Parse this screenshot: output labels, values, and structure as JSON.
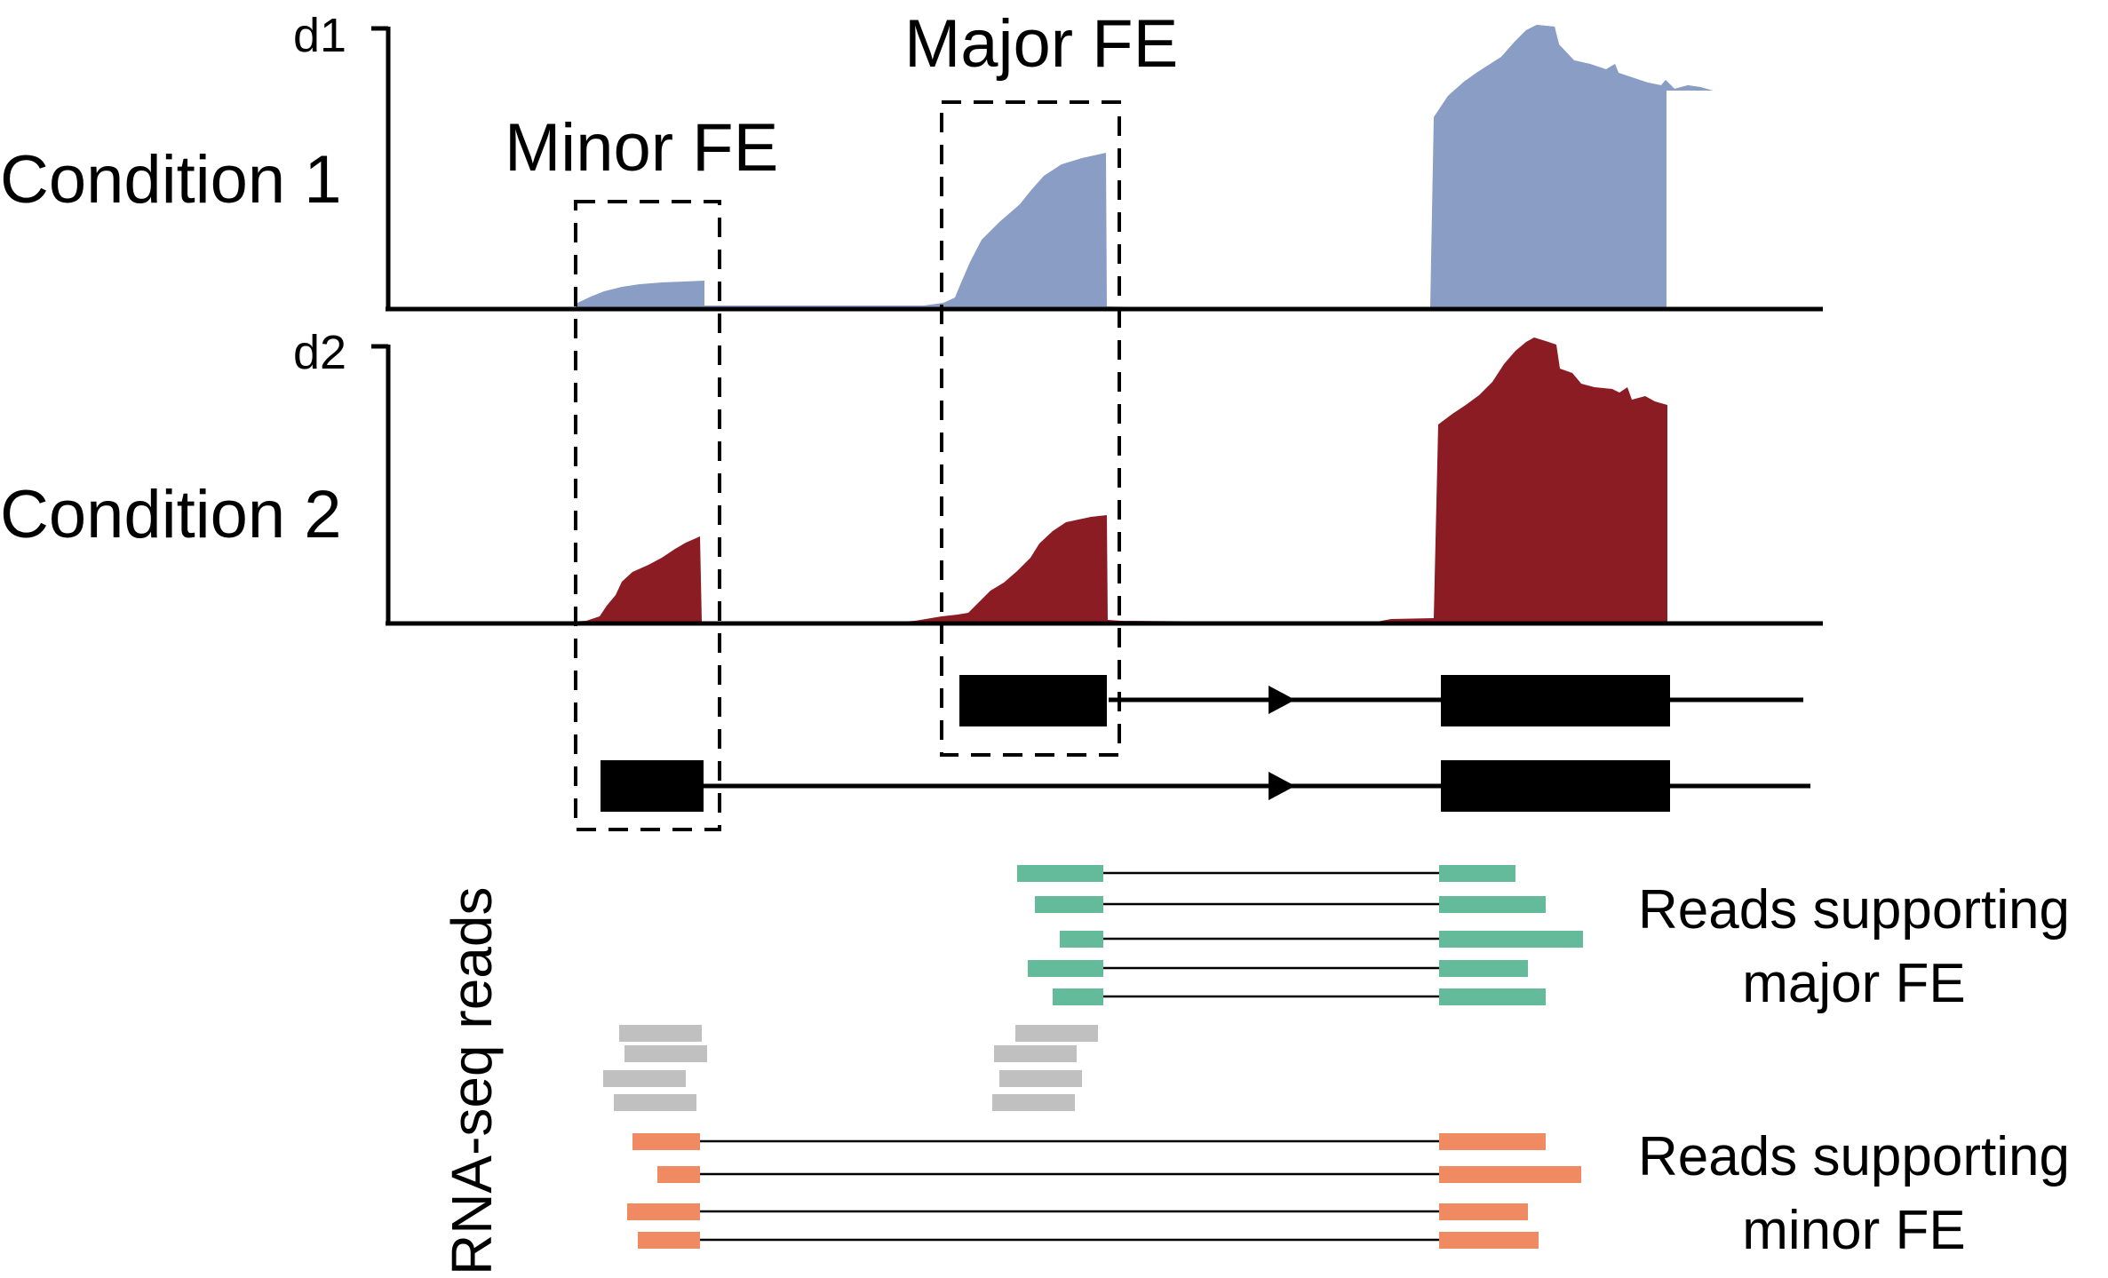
{
  "tracks": [
    {
      "id": "condition1",
      "label": "Condition 1",
      "axis_label": "d1",
      "color": "#8a9dc4"
    },
    {
      "id": "condition2",
      "label": "Condition 2",
      "axis_label": "d2",
      "color": "#8b1c24"
    }
  ],
  "boxes": {
    "minor": {
      "label": "Minor FE"
    },
    "major": {
      "label": "Major FE"
    }
  },
  "reads_title": "RNA-seq reads",
  "groups": {
    "major": {
      "line1": "Reads supporting",
      "line2": "major FE",
      "color": "#63bb9c"
    },
    "minor": {
      "line1": "Reads supporting",
      "line2": "minor FE",
      "color": "#f08a63"
    },
    "unspliced": {
      "color": "#c0c0c0"
    }
  },
  "colors": {
    "axis": "#000000",
    "gene_model": "#000000"
  }
}
